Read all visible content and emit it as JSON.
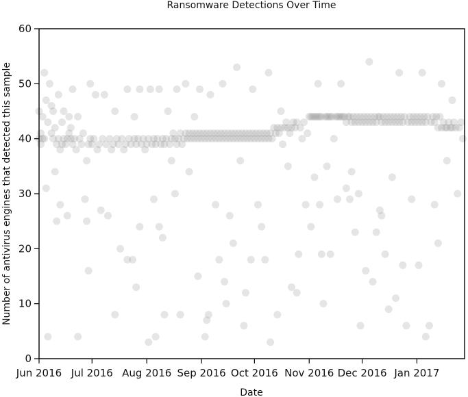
{
  "chart_data": {
    "type": "scatter",
    "title": "Ransomware Detections Over Time",
    "xlabel": "Date",
    "ylabel": "Number of antivirus engines that detected this sample",
    "x_domain": [
      "2016-06-01",
      "2017-01-28"
    ],
    "ylim": [
      0,
      60
    ],
    "yticks": [
      0,
      10,
      20,
      30,
      40,
      50,
      60
    ],
    "xticks": [
      {
        "label": "Jun 2016",
        "date": "2016-06-01"
      },
      {
        "label": "Jul 2016",
        "date": "2016-07-01"
      },
      {
        "label": "Aug 2016",
        "date": "2016-08-01"
      },
      {
        "label": "Sep 2016",
        "date": "2016-09-01"
      },
      {
        "label": "Oct 2016",
        "date": "2016-10-01"
      },
      {
        "label": "Nov 2016",
        "date": "2016-11-01"
      },
      {
        "label": "Dec 2016",
        "date": "2016-12-01"
      },
      {
        "label": "Jan 2017",
        "date": "2017-01-01"
      }
    ],
    "grid": false,
    "marker_color": "#888888",
    "marker_opacity": 0.22,
    "points": [
      [
        "2016-06-01",
        40
      ],
      [
        "2016-06-01",
        45
      ],
      [
        "2016-06-02",
        39
      ],
      [
        "2016-06-02",
        41
      ],
      [
        "2016-06-03",
        40
      ],
      [
        "2016-06-03",
        44
      ],
      [
        "2016-06-04",
        52
      ],
      [
        "2016-06-04",
        40
      ],
      [
        "2016-06-05",
        47
      ],
      [
        "2016-06-05",
        31
      ],
      [
        "2016-06-06",
        4
      ],
      [
        "2016-06-06",
        43
      ],
      [
        "2016-06-07",
        50
      ],
      [
        "2016-06-08",
        41
      ],
      [
        "2016-06-08",
        46
      ],
      [
        "2016-06-09",
        40
      ],
      [
        "2016-06-09",
        45
      ],
      [
        "2016-06-10",
        42
      ],
      [
        "2016-06-10",
        34
      ],
      [
        "2016-06-11",
        39
      ],
      [
        "2016-06-11",
        25
      ],
      [
        "2016-06-12",
        48
      ],
      [
        "2016-06-12",
        40
      ],
      [
        "2016-06-13",
        28
      ],
      [
        "2016-06-13",
        38
      ],
      [
        "2016-06-14",
        39
      ],
      [
        "2016-06-14",
        43
      ],
      [
        "2016-06-15",
        40
      ],
      [
        "2016-06-15",
        45
      ],
      [
        "2016-06-16",
        39
      ],
      [
        "2016-06-17",
        40
      ],
      [
        "2016-06-17",
        26
      ],
      [
        "2016-06-18",
        41
      ],
      [
        "2016-06-18",
        44
      ],
      [
        "2016-06-19",
        40
      ],
      [
        "2016-06-19",
        42
      ],
      [
        "2016-06-20",
        39
      ],
      [
        "2016-06-20",
        49
      ],
      [
        "2016-06-21",
        40
      ],
      [
        "2016-06-22",
        38
      ],
      [
        "2016-06-23",
        4
      ],
      [
        "2016-06-23",
        44
      ],
      [
        "2016-06-24",
        40
      ],
      [
        "2016-06-25",
        39
      ],
      [
        "2016-06-26",
        41
      ],
      [
        "2016-06-27",
        29
      ],
      [
        "2016-06-28",
        25
      ],
      [
        "2016-06-28",
        36
      ],
      [
        "2016-06-29",
        16
      ],
      [
        "2016-06-29",
        39
      ],
      [
        "2016-06-30",
        40
      ],
      [
        "2016-06-30",
        50
      ],
      [
        "2016-07-01",
        39
      ],
      [
        "2016-07-02",
        40
      ],
      [
        "2016-07-03",
        48
      ],
      [
        "2016-07-04",
        38
      ],
      [
        "2016-07-05",
        39
      ],
      [
        "2016-07-06",
        27
      ],
      [
        "2016-07-07",
        40
      ],
      [
        "2016-07-08",
        48
      ],
      [
        "2016-07-09",
        39
      ],
      [
        "2016-07-10",
        26
      ],
      [
        "2016-07-11",
        40
      ],
      [
        "2016-07-12",
        38
      ],
      [
        "2016-07-13",
        39
      ],
      [
        "2016-07-14",
        8
      ],
      [
        "2016-07-14",
        45
      ],
      [
        "2016-07-15",
        40
      ],
      [
        "2016-07-16",
        39
      ],
      [
        "2016-07-17",
        20
      ],
      [
        "2016-07-18",
        40
      ],
      [
        "2016-07-19",
        38
      ],
      [
        "2016-07-20",
        39
      ],
      [
        "2016-07-21",
        18
      ],
      [
        "2016-07-21",
        49
      ],
      [
        "2016-07-22",
        40
      ],
      [
        "2016-07-23",
        39
      ],
      [
        "2016-07-24",
        18
      ],
      [
        "2016-07-25",
        40
      ],
      [
        "2016-07-25",
        44
      ],
      [
        "2016-07-26",
        13
      ],
      [
        "2016-07-26",
        39
      ],
      [
        "2016-07-27",
        40
      ],
      [
        "2016-07-28",
        24
      ],
      [
        "2016-07-28",
        49
      ],
      [
        "2016-07-29",
        39
      ],
      [
        "2016-07-30",
        40
      ],
      [
        "2016-07-31",
        38
      ],
      [
        "2016-08-01",
        39
      ],
      [
        "2016-08-02",
        3
      ],
      [
        "2016-08-02",
        40
      ],
      [
        "2016-08-03",
        49
      ],
      [
        "2016-08-04",
        39
      ],
      [
        "2016-08-05",
        29
      ],
      [
        "2016-08-05",
        40
      ],
      [
        "2016-08-06",
        4
      ],
      [
        "2016-08-06",
        39
      ],
      [
        "2016-08-07",
        40
      ],
      [
        "2016-08-08",
        24
      ],
      [
        "2016-08-08",
        49
      ],
      [
        "2016-08-09",
        39
      ],
      [
        "2016-08-10",
        22
      ],
      [
        "2016-08-10",
        40
      ],
      [
        "2016-08-11",
        8
      ],
      [
        "2016-08-11",
        39
      ],
      [
        "2016-08-12",
        40
      ],
      [
        "2016-08-13",
        45
      ],
      [
        "2016-08-14",
        39
      ],
      [
        "2016-08-15",
        36
      ],
      [
        "2016-08-15",
        40
      ],
      [
        "2016-08-16",
        41
      ],
      [
        "2016-08-17",
        30
      ],
      [
        "2016-08-17",
        40
      ],
      [
        "2016-08-18",
        49
      ],
      [
        "2016-08-18",
        39
      ],
      [
        "2016-08-19",
        40
      ],
      [
        "2016-08-20",
        8
      ],
      [
        "2016-08-20",
        41
      ],
      [
        "2016-08-21",
        39
      ],
      [
        "2016-08-22",
        40
      ],
      [
        "2016-08-23",
        50
      ],
      [
        "2016-08-23",
        41
      ],
      [
        "2016-08-24",
        40
      ],
      [
        "2016-08-25",
        34
      ],
      [
        "2016-08-25",
        41
      ],
      [
        "2016-08-26",
        40
      ],
      [
        "2016-08-27",
        41
      ],
      [
        "2016-08-28",
        44
      ],
      [
        "2016-08-28",
        40
      ],
      [
        "2016-08-29",
        41
      ],
      [
        "2016-08-30",
        15
      ],
      [
        "2016-08-30",
        40
      ],
      [
        "2016-08-31",
        41
      ],
      [
        "2016-08-31",
        49
      ],
      [
        "2016-09-01",
        40
      ],
      [
        "2016-09-02",
        41
      ],
      [
        "2016-09-03",
        4
      ],
      [
        "2016-09-03",
        40
      ],
      [
        "2016-09-04",
        7
      ],
      [
        "2016-09-04",
        41
      ],
      [
        "2016-09-05",
        8
      ],
      [
        "2016-09-05",
        40
      ],
      [
        "2016-09-06",
        41
      ],
      [
        "2016-09-06",
        48
      ],
      [
        "2016-09-07",
        40
      ],
      [
        "2016-09-08",
        41
      ],
      [
        "2016-09-09",
        28
      ],
      [
        "2016-09-09",
        40
      ],
      [
        "2016-09-10",
        41
      ],
      [
        "2016-09-11",
        18
      ],
      [
        "2016-09-11",
        40
      ],
      [
        "2016-09-12",
        41
      ],
      [
        "2016-09-13",
        50
      ],
      [
        "2016-09-13",
        40
      ],
      [
        "2016-09-14",
        14
      ],
      [
        "2016-09-14",
        41
      ],
      [
        "2016-09-15",
        10
      ],
      [
        "2016-09-15",
        40
      ],
      [
        "2016-09-16",
        41
      ],
      [
        "2016-09-17",
        26
      ],
      [
        "2016-09-17",
        40
      ],
      [
        "2016-09-18",
        41
      ],
      [
        "2016-09-19",
        21
      ],
      [
        "2016-09-19",
        40
      ],
      [
        "2016-09-20",
        41
      ],
      [
        "2016-09-21",
        53
      ],
      [
        "2016-09-21",
        40
      ],
      [
        "2016-09-22",
        41
      ],
      [
        "2016-09-23",
        36
      ],
      [
        "2016-09-23",
        40
      ],
      [
        "2016-09-24",
        41
      ],
      [
        "2016-09-25",
        6
      ],
      [
        "2016-09-25",
        40
      ],
      [
        "2016-09-26",
        12
      ],
      [
        "2016-09-26",
        41
      ],
      [
        "2016-09-27",
        40
      ],
      [
        "2016-09-28",
        41
      ],
      [
        "2016-09-29",
        18
      ],
      [
        "2016-09-29",
        40
      ],
      [
        "2016-09-30",
        41
      ],
      [
        "2016-09-30",
        49
      ],
      [
        "2016-10-01",
        40
      ],
      [
        "2016-10-02",
        41
      ],
      [
        "2016-10-03",
        28
      ],
      [
        "2016-10-03",
        40
      ],
      [
        "2016-10-04",
        41
      ],
      [
        "2016-10-05",
        24
      ],
      [
        "2016-10-05",
        40
      ],
      [
        "2016-10-06",
        41
      ],
      [
        "2016-10-07",
        18
      ],
      [
        "2016-10-07",
        40
      ],
      [
        "2016-10-08",
        41
      ],
      [
        "2016-10-09",
        52
      ],
      [
        "2016-10-09",
        40
      ],
      [
        "2016-10-10",
        3
      ],
      [
        "2016-10-10",
        41
      ],
      [
        "2016-10-11",
        40
      ],
      [
        "2016-10-12",
        42
      ],
      [
        "2016-10-13",
        41
      ],
      [
        "2016-10-14",
        8
      ],
      [
        "2016-10-14",
        42
      ],
      [
        "2016-10-15",
        41
      ],
      [
        "2016-10-16",
        45
      ],
      [
        "2016-10-16",
        42
      ],
      [
        "2016-10-17",
        39
      ],
      [
        "2016-10-18",
        42
      ],
      [
        "2016-10-19",
        43
      ],
      [
        "2016-10-20",
        35
      ],
      [
        "2016-10-20",
        42
      ],
      [
        "2016-10-21",
        41
      ],
      [
        "2016-10-22",
        13
      ],
      [
        "2016-10-22",
        42
      ],
      [
        "2016-10-23",
        43
      ],
      [
        "2016-10-24",
        42
      ],
      [
        "2016-10-25",
        12
      ],
      [
        "2016-10-25",
        43
      ],
      [
        "2016-10-26",
        19
      ],
      [
        "2016-10-27",
        42
      ],
      [
        "2016-10-28",
        40
      ],
      [
        "2016-10-29",
        43
      ],
      [
        "2016-10-30",
        28
      ],
      [
        "2016-10-31",
        41
      ],
      [
        "2016-11-01",
        44
      ],
      [
        "2016-11-02",
        24
      ],
      [
        "2016-11-02",
        44
      ],
      [
        "2016-11-03",
        44
      ],
      [
        "2016-11-04",
        33
      ],
      [
        "2016-11-04",
        44
      ],
      [
        "2016-11-05",
        44
      ],
      [
        "2016-11-06",
        50
      ],
      [
        "2016-11-06",
        44
      ],
      [
        "2016-11-07",
        28
      ],
      [
        "2016-11-07",
        44
      ],
      [
        "2016-11-08",
        19
      ],
      [
        "2016-11-08",
        44
      ],
      [
        "2016-11-09",
        10
      ],
      [
        "2016-11-10",
        44
      ],
      [
        "2016-11-11",
        35
      ],
      [
        "2016-11-11",
        44
      ],
      [
        "2016-11-12",
        44
      ],
      [
        "2016-11-13",
        19
      ],
      [
        "2016-11-13",
        44
      ],
      [
        "2016-11-14",
        44
      ],
      [
        "2016-11-15",
        40
      ],
      [
        "2016-11-16",
        44
      ],
      [
        "2016-11-17",
        29
      ],
      [
        "2016-11-17",
        44
      ],
      [
        "2016-11-18",
        44
      ],
      [
        "2016-11-19",
        50
      ],
      [
        "2016-11-19",
        44
      ],
      [
        "2016-11-20",
        44
      ],
      [
        "2016-11-21",
        44
      ],
      [
        "2016-11-22",
        31
      ],
      [
        "2016-11-22",
        43
      ],
      [
        "2016-11-23",
        44
      ],
      [
        "2016-11-24",
        29
      ],
      [
        "2016-11-24",
        44
      ],
      [
        "2016-11-25",
        34
      ],
      [
        "2016-11-25",
        43
      ],
      [
        "2016-11-26",
        44
      ],
      [
        "2016-11-27",
        23
      ],
      [
        "2016-11-27",
        43
      ],
      [
        "2016-11-28",
        44
      ],
      [
        "2016-11-29",
        30
      ],
      [
        "2016-11-29",
        43
      ],
      [
        "2016-11-30",
        44
      ],
      [
        "2016-11-30",
        6
      ],
      [
        "2016-12-01",
        43
      ],
      [
        "2016-12-02",
        44
      ],
      [
        "2016-12-03",
        16
      ],
      [
        "2016-12-03",
        43
      ],
      [
        "2016-12-04",
        44
      ],
      [
        "2016-12-05",
        54
      ],
      [
        "2016-12-05",
        43
      ],
      [
        "2016-12-06",
        44
      ],
      [
        "2016-12-07",
        14
      ],
      [
        "2016-12-07",
        43
      ],
      [
        "2016-12-08",
        44
      ],
      [
        "2016-12-09",
        23
      ],
      [
        "2016-12-09",
        43
      ],
      [
        "2016-12-10",
        44
      ],
      [
        "2016-12-11",
        27
      ],
      [
        "2016-12-11",
        44
      ],
      [
        "2016-12-12",
        26
      ],
      [
        "2016-12-12",
        43
      ],
      [
        "2016-12-13",
        44
      ],
      [
        "2016-12-14",
        19
      ],
      [
        "2016-12-14",
        43
      ],
      [
        "2016-12-15",
        44
      ],
      [
        "2016-12-16",
        9
      ],
      [
        "2016-12-16",
        43
      ],
      [
        "2016-12-17",
        44
      ],
      [
        "2016-12-18",
        33
      ],
      [
        "2016-12-18",
        43
      ],
      [
        "2016-12-19",
        44
      ],
      [
        "2016-12-20",
        11
      ],
      [
        "2016-12-20",
        43
      ],
      [
        "2016-12-21",
        44
      ],
      [
        "2016-12-22",
        52
      ],
      [
        "2016-12-22",
        43
      ],
      [
        "2016-12-23",
        44
      ],
      [
        "2016-12-24",
        17
      ],
      [
        "2016-12-24",
        43
      ],
      [
        "2016-12-25",
        44
      ],
      [
        "2016-12-26",
        6
      ],
      [
        "2016-12-27",
        43
      ],
      [
        "2016-12-28",
        44
      ],
      [
        "2016-12-29",
        29
      ],
      [
        "2016-12-29",
        43
      ],
      [
        "2016-12-30",
        44
      ],
      [
        "2016-12-31",
        43
      ],
      [
        "2017-01-01",
        44
      ],
      [
        "2017-01-02",
        17
      ],
      [
        "2017-01-02",
        43
      ],
      [
        "2017-01-03",
        44
      ],
      [
        "2017-01-04",
        52
      ],
      [
        "2017-01-04",
        43
      ],
      [
        "2017-01-05",
        44
      ],
      [
        "2017-01-06",
        4
      ],
      [
        "2017-01-06",
        43
      ],
      [
        "2017-01-07",
        44
      ],
      [
        "2017-01-08",
        6
      ],
      [
        "2017-01-09",
        43
      ],
      [
        "2017-01-10",
        44
      ],
      [
        "2017-01-11",
        28
      ],
      [
        "2017-01-11",
        43
      ],
      [
        "2017-01-12",
        44
      ],
      [
        "2017-01-13",
        21
      ],
      [
        "2017-01-13",
        42
      ],
      [
        "2017-01-14",
        44
      ],
      [
        "2017-01-15",
        50
      ],
      [
        "2017-01-15",
        42
      ],
      [
        "2017-01-16",
        43
      ],
      [
        "2017-01-17",
        42
      ],
      [
        "2017-01-18",
        36
      ],
      [
        "2017-01-18",
        42
      ],
      [
        "2017-01-19",
        43
      ],
      [
        "2017-01-20",
        42
      ],
      [
        "2017-01-21",
        47
      ],
      [
        "2017-01-21",
        42
      ],
      [
        "2017-01-22",
        43
      ],
      [
        "2017-01-23",
        42
      ],
      [
        "2017-01-24",
        30
      ],
      [
        "2017-01-25",
        42
      ],
      [
        "2017-01-26",
        43
      ],
      [
        "2017-01-27",
        40
      ]
    ]
  }
}
